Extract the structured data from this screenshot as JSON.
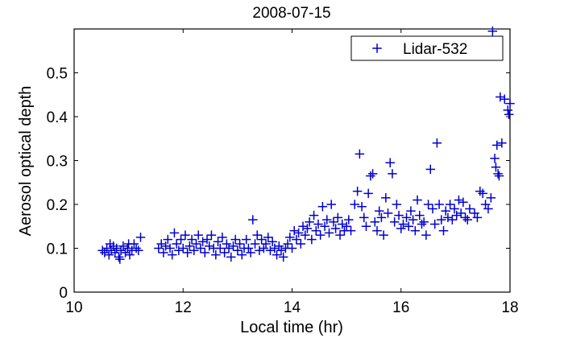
{
  "chart_data": {
    "type": "scatter",
    "title": "2008-07-15",
    "xlabel": "Local time (hr)",
    "ylabel": "Aerosol optical depth",
    "xlim": [
      10,
      18
    ],
    "ylim": [
      0,
      0.6
    ],
    "xticks": [
      "10",
      "12",
      "14",
      "16",
      "18"
    ],
    "xtick_values": [
      10,
      12,
      14,
      16,
      18
    ],
    "yticks": [
      "0",
      "0.1",
      "0.2",
      "0.3",
      "0.4",
      "0.5"
    ],
    "ytick_values": [
      0,
      0.1,
      0.2,
      0.3,
      0.4,
      0.5
    ],
    "grid": false,
    "legend_position": "top-right",
    "series": [
      {
        "name": "Lidar-532",
        "color": "#0000cc",
        "marker": "plus",
        "points": [
          [
            10.52,
            0.095
          ],
          [
            10.56,
            0.09
          ],
          [
            10.6,
            0.1
          ],
          [
            10.64,
            0.085
          ],
          [
            10.68,
            0.095
          ],
          [
            10.72,
            0.105
          ],
          [
            10.75,
            0.09
          ],
          [
            10.78,
            0.1
          ],
          [
            10.82,
            0.08
          ],
          [
            10.86,
            0.095
          ],
          [
            10.9,
            0.105
          ],
          [
            10.94,
            0.09
          ],
          [
            10.98,
            0.1
          ],
          [
            11.02,
            0.085
          ],
          [
            11.06,
            0.095
          ],
          [
            11.1,
            0.11
          ],
          [
            11.14,
            0.1
          ],
          [
            11.18,
            0.095
          ],
          [
            11.22,
            0.125
          ],
          [
            10.66,
            0.11
          ],
          [
            10.84,
            0.075
          ],
          [
            11.0,
            0.11
          ],
          [
            11.55,
            0.1
          ],
          [
            11.6,
            0.11
          ],
          [
            11.64,
            0.09
          ],
          [
            11.68,
            0.105
          ],
          [
            11.72,
            0.12
          ],
          [
            11.76,
            0.1
          ],
          [
            11.8,
            0.085
          ],
          [
            11.84,
            0.135
          ],
          [
            11.88,
            0.11
          ],
          [
            11.92,
            0.095
          ],
          [
            11.96,
            0.12
          ],
          [
            12.0,
            0.1
          ],
          [
            12.04,
            0.13
          ],
          [
            12.08,
            0.09
          ],
          [
            12.12,
            0.105
          ],
          [
            12.16,
            0.12
          ],
          [
            12.2,
            0.095
          ],
          [
            12.24,
            0.11
          ],
          [
            12.28,
            0.13
          ],
          [
            12.32,
            0.1
          ],
          [
            12.36,
            0.115
          ],
          [
            12.4,
            0.09
          ],
          [
            12.44,
            0.12
          ],
          [
            12.48,
            0.105
          ],
          [
            12.52,
            0.13
          ],
          [
            12.56,
            0.1
          ],
          [
            12.6,
            0.085
          ],
          [
            12.64,
            0.115
          ],
          [
            12.68,
            0.1
          ],
          [
            12.72,
            0.125
          ],
          [
            12.76,
            0.09
          ],
          [
            12.8,
            0.11
          ],
          [
            12.84,
            0.1
          ],
          [
            12.88,
            0.08
          ],
          [
            12.92,
            0.105
          ],
          [
            12.96,
            0.12
          ],
          [
            13.0,
            0.095
          ],
          [
            13.04,
            0.11
          ],
          [
            13.08,
            0.085
          ],
          [
            13.12,
            0.1
          ],
          [
            13.16,
            0.12
          ],
          [
            13.2,
            0.1
          ],
          [
            13.24,
            0.09
          ],
          [
            13.28,
            0.165
          ],
          [
            13.32,
            0.11
          ],
          [
            13.36,
            0.13
          ],
          [
            13.4,
            0.095
          ],
          [
            13.44,
            0.12
          ],
          [
            13.48,
            0.1
          ],
          [
            13.52,
            0.11
          ],
          [
            13.56,
            0.125
          ],
          [
            13.6,
            0.095
          ],
          [
            13.64,
            0.115
          ],
          [
            13.68,
            0.1
          ],
          [
            13.72,
            0.085
          ],
          [
            13.76,
            0.105
          ],
          [
            13.8,
            0.095
          ],
          [
            13.84,
            0.08
          ],
          [
            13.88,
            0.1
          ],
          [
            13.92,
            0.11
          ],
          [
            13.96,
            0.125
          ],
          [
            14.0,
            0.1
          ],
          [
            14.04,
            0.14
          ],
          [
            14.08,
            0.12
          ],
          [
            14.12,
            0.135
          ],
          [
            14.16,
            0.11
          ],
          [
            14.2,
            0.15
          ],
          [
            14.24,
            0.13
          ],
          [
            14.28,
            0.145
          ],
          [
            14.32,
            0.16
          ],
          [
            14.36,
            0.12
          ],
          [
            14.4,
            0.175
          ],
          [
            14.44,
            0.14
          ],
          [
            14.48,
            0.155
          ],
          [
            14.52,
            0.13
          ],
          [
            14.56,
            0.195
          ],
          [
            14.6,
            0.15
          ],
          [
            14.64,
            0.165
          ],
          [
            14.68,
            0.135
          ],
          [
            14.72,
            0.2
          ],
          [
            14.76,
            0.16
          ],
          [
            14.8,
            0.145
          ],
          [
            14.84,
            0.17
          ],
          [
            14.88,
            0.13
          ],
          [
            14.92,
            0.155
          ],
          [
            14.96,
            0.14
          ],
          [
            15.0,
            0.15
          ],
          [
            15.04,
            0.165
          ],
          [
            15.08,
            0.14
          ],
          [
            15.15,
            0.2
          ],
          [
            15.2,
            0.23
          ],
          [
            15.24,
            0.315
          ],
          [
            15.28,
            0.195
          ],
          [
            15.32,
            0.17
          ],
          [
            15.36,
            0.15
          ],
          [
            15.4,
            0.225
          ],
          [
            15.44,
            0.265
          ],
          [
            15.48,
            0.27
          ],
          [
            15.52,
            0.16
          ],
          [
            15.56,
            0.14
          ],
          [
            15.6,
            0.185
          ],
          [
            15.64,
            0.17
          ],
          [
            15.68,
            0.13
          ],
          [
            15.72,
            0.215
          ],
          [
            15.76,
            0.18
          ],
          [
            15.8,
            0.295
          ],
          [
            15.84,
            0.27
          ],
          [
            15.88,
            0.16
          ],
          [
            15.92,
            0.2
          ],
          [
            15.96,
            0.175
          ],
          [
            16.0,
            0.145
          ],
          [
            16.04,
            0.155
          ],
          [
            16.1,
            0.17
          ],
          [
            16.14,
            0.15
          ],
          [
            16.18,
            0.185
          ],
          [
            16.22,
            0.165
          ],
          [
            16.26,
            0.14
          ],
          [
            16.3,
            0.21
          ],
          [
            16.34,
            0.175
          ],
          [
            16.38,
            0.155
          ],
          [
            16.42,
            0.16
          ],
          [
            16.46,
            0.13
          ],
          [
            16.5,
            0.2
          ],
          [
            16.54,
            0.28
          ],
          [
            16.58,
            0.19
          ],
          [
            16.62,
            0.155
          ],
          [
            16.66,
            0.34
          ],
          [
            16.7,
            0.2
          ],
          [
            16.74,
            0.165
          ],
          [
            16.78,
            0.14
          ],
          [
            16.82,
            0.185
          ],
          [
            16.86,
            0.17
          ],
          [
            16.9,
            0.2
          ],
          [
            16.94,
            0.165
          ],
          [
            16.98,
            0.19
          ],
          [
            17.02,
            0.175
          ],
          [
            17.06,
            0.21
          ],
          [
            17.1,
            0.18
          ],
          [
            17.14,
            0.205
          ],
          [
            17.18,
            0.17
          ],
          [
            17.22,
            0.165
          ],
          [
            17.26,
            0.19
          ],
          [
            17.35,
            0.18
          ],
          [
            17.4,
            0.17
          ],
          [
            17.45,
            0.23
          ],
          [
            17.5,
            0.225
          ],
          [
            17.55,
            0.2
          ],
          [
            17.6,
            0.19
          ],
          [
            17.65,
            0.215
          ],
          [
            17.68,
            0.595
          ],
          [
            17.72,
            0.305
          ],
          [
            17.74,
            0.285
          ],
          [
            17.76,
            0.335
          ],
          [
            17.78,
            0.27
          ],
          [
            17.8,
            0.265
          ],
          [
            17.82,
            0.445
          ],
          [
            17.85,
            0.34
          ],
          [
            17.9,
            0.44
          ],
          [
            17.96,
            0.415
          ],
          [
            18.0,
            0.43
          ],
          [
            17.98,
            0.405
          ]
        ]
      }
    ]
  }
}
